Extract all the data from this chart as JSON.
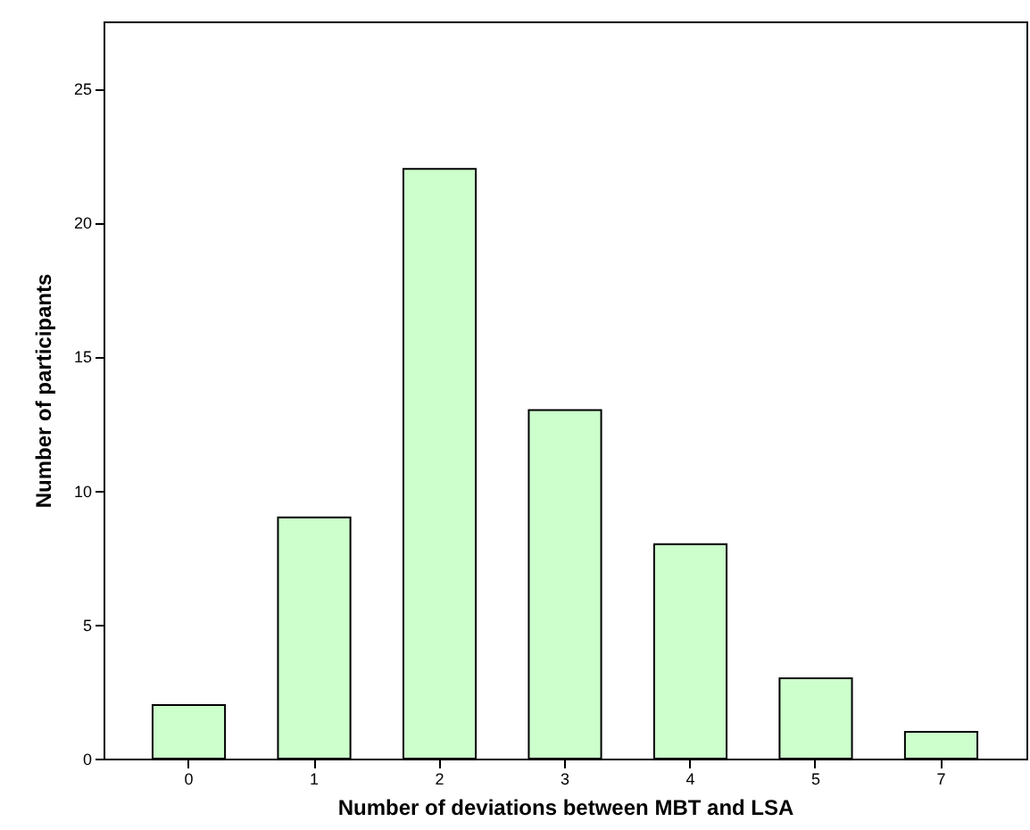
{
  "chart_data": {
    "type": "bar",
    "xlabel": "Number of deviations between MBT and LSA",
    "ylabel": "Number of participants",
    "categories": [
      "0",
      "1",
      "2",
      "3",
      "4",
      "5",
      "7"
    ],
    "values": [
      2,
      9,
      22,
      13,
      8,
      3,
      1
    ],
    "color": "#ccffcc",
    "ylim": [
      0,
      27.5
    ],
    "yticks": [
      0,
      5,
      10,
      15,
      20,
      25
    ],
    "grid": false
  }
}
